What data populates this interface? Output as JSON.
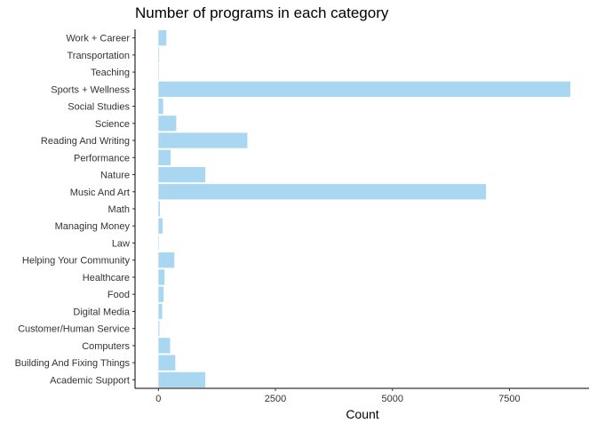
{
  "chart_data": {
    "type": "bar",
    "orientation": "horizontal",
    "title": "Number of programs in each category",
    "xlabel": "Count",
    "ylabel": "",
    "xlim": [
      -500,
      9200
    ],
    "x_ticks": [
      0,
      2500,
      5000,
      7500
    ],
    "x_tick_labels": [
      "0",
      "2500",
      "5000",
      "7500"
    ],
    "grid": false,
    "legend": "none",
    "bar_color": "#a9d6f0",
    "categories": [
      "Academic Support",
      "Building And Fixing Things",
      "Computers",
      "Customer/Human Service",
      "Digital Media",
      "Food",
      "Healthcare",
      "Helping Your Community",
      "Law",
      "Managing Money",
      "Math",
      "Music And Art",
      "Nature",
      "Performance",
      "Reading And Writing",
      "Science",
      "Social Studies",
      "Sports + Wellness",
      "Teaching",
      "Transportation",
      "Work + Career"
    ],
    "values": [
      1000,
      360,
      250,
      20,
      80,
      110,
      130,
      340,
      5,
      90,
      30,
      7000,
      1000,
      260,
      1900,
      380,
      100,
      8800,
      10,
      15,
      170
    ]
  }
}
